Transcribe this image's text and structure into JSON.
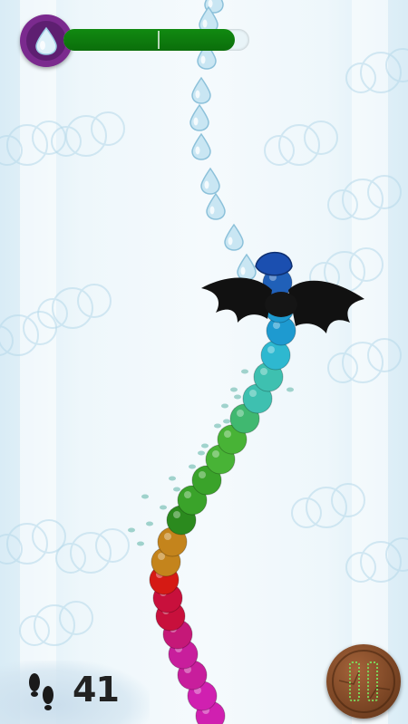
{
  "hud": {
    "energy": {
      "level": 0.92,
      "color": "#118a11"
    },
    "drop_icon": "water-drop-icon",
    "hud_color": "#6f2584"
  },
  "score": {
    "steps": "41",
    "icon": "footprints-icon"
  },
  "controls": {
    "pause_icon": "pause-icon"
  },
  "worm": {
    "colors": [
      "#d020b0",
      "#c81e9c",
      "#c51878",
      "#c8103c",
      "#d51a14",
      "#c4841c",
      "#2b8a1e",
      "#3aa32a",
      "#48b336",
      "#40b870",
      "#3ec0b0",
      "#2eb8d0",
      "#1e9ad0",
      "#2060b8"
    ]
  },
  "enemy": {
    "icon": "bat-icon"
  },
  "collectibles": {
    "icon": "water-drop-icon",
    "color": "#c9e6f3"
  }
}
